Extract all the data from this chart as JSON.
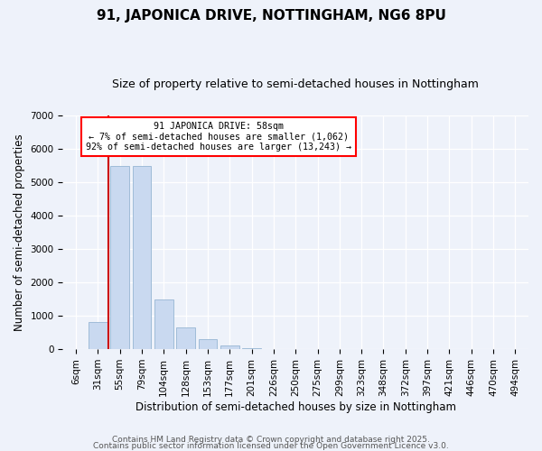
{
  "title": "91, JAPONICA DRIVE, NOTTINGHAM, NG6 8PU",
  "subtitle": "Size of property relative to semi-detached houses in Nottingham",
  "xlabel": "Distribution of semi-detached houses by size in Nottingham",
  "ylabel": "Number of semi-detached properties",
  "bar_labels": [
    "6sqm",
    "31sqm",
    "55sqm",
    "79sqm",
    "104sqm",
    "128sqm",
    "153sqm",
    "177sqm",
    "201sqm",
    "226sqm",
    "250sqm",
    "275sqm",
    "299sqm",
    "323sqm",
    "348sqm",
    "372sqm",
    "397sqm",
    "421sqm",
    "446sqm",
    "470sqm",
    "494sqm"
  ],
  "bar_values": [
    0,
    800,
    5500,
    5500,
    1500,
    650,
    300,
    120,
    30,
    10,
    0,
    0,
    0,
    0,
    0,
    0,
    0,
    0,
    0,
    0,
    0
  ],
  "bar_color": "#c9d9f0",
  "bar_edge_color": "#a0bcd8",
  "vline_x_index": 2,
  "vline_color": "#cc0000",
  "annotation_title": "91 JAPONICA DRIVE: 58sqm",
  "annotation_line1": "← 7% of semi-detached houses are smaller (1,062)",
  "annotation_line2": "92% of semi-detached houses are larger (13,243) →",
  "ylim": [
    0,
    7000
  ],
  "yticks": [
    0,
    1000,
    2000,
    3000,
    4000,
    5000,
    6000,
    7000
  ],
  "footer1": "Contains HM Land Registry data © Crown copyright and database right 2025.",
  "footer2": "Contains public sector information licensed under the Open Government Licence v3.0.",
  "bg_color": "#eef2fa",
  "title_fontsize": 11,
  "subtitle_fontsize": 9,
  "axis_label_fontsize": 8.5,
  "tick_fontsize": 7.5,
  "footer_fontsize": 6.5,
  "ann_fontsize": 7.2
}
